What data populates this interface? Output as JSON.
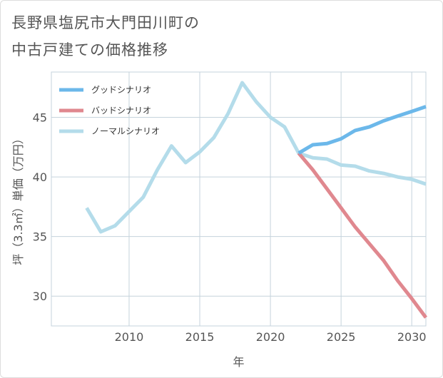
{
  "title_lines": [
    "長野県塩尻市大門田川町の",
    "中古戸建ての価格推移"
  ],
  "chart_data": {
    "type": "line",
    "title": "長野県塩尻市大門田川町の中古戸建ての価格推移",
    "xlabel": "年",
    "ylabel": "坪（3.3㎡）単価（万円）",
    "xlim": [
      2004.5,
      2031
    ],
    "ylim": [
      27.5,
      48.8
    ],
    "x_ticks": [
      2010,
      2015,
      2020,
      2025,
      2030
    ],
    "y_ticks": [
      30,
      35,
      40,
      45
    ],
    "grid": true,
    "legend_position": "top-left",
    "series": [
      {
        "name": "グッドシナリオ",
        "color": "#6cb8ea",
        "x": [
          2022,
          2023,
          2024,
          2025,
          2026,
          2027,
          2028,
          2029,
          2030,
          2031
        ],
        "y": [
          42.0,
          42.7,
          42.8,
          43.2,
          43.9,
          44.2,
          44.7,
          45.1,
          45.5,
          45.9
        ]
      },
      {
        "name": "バッドシナリオ",
        "color": "#e0888f",
        "x": [
          2022,
          2023,
          2024,
          2025,
          2026,
          2027,
          2028,
          2029,
          2030,
          2031
        ],
        "y": [
          42.0,
          40.6,
          39.0,
          37.4,
          35.8,
          34.4,
          33.0,
          31.3,
          29.8,
          28.2
        ]
      },
      {
        "name": "ノーマルシナリオ",
        "color": "#b4dcea",
        "x": [
          2007,
          2008,
          2009,
          2010,
          2011,
          2012,
          2013,
          2014,
          2015,
          2016,
          2017,
          2018,
          2019,
          2020,
          2021,
          2022,
          2023,
          2024,
          2025,
          2026,
          2027,
          2028,
          2029,
          2030,
          2031
        ],
        "y": [
          37.4,
          35.4,
          35.9,
          37.1,
          38.3,
          40.6,
          42.6,
          41.2,
          42.1,
          43.3,
          45.3,
          47.9,
          46.3,
          45.0,
          44.2,
          42.0,
          41.6,
          41.5,
          41.0,
          40.9,
          40.5,
          40.3,
          40.0,
          39.8,
          39.4
        ]
      }
    ]
  }
}
